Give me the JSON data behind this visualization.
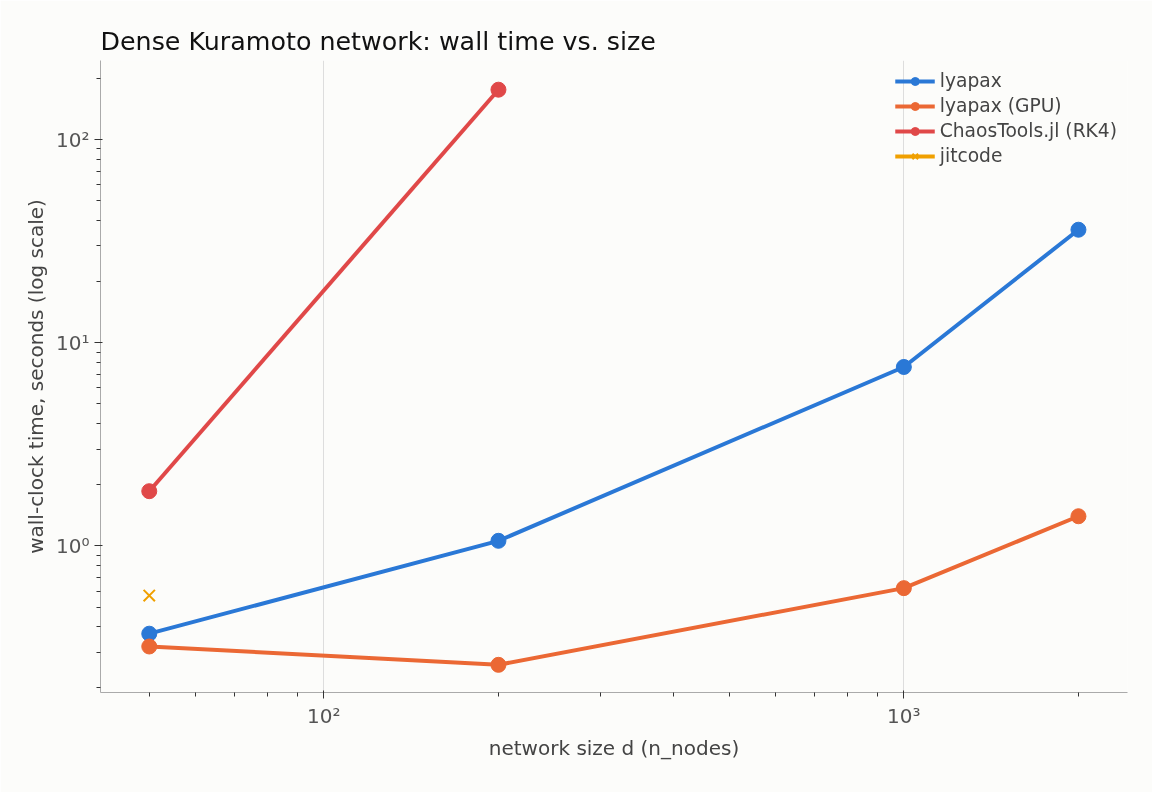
{
  "chart_data": {
    "type": "line",
    "title": "Dense Kuramoto network: wall time vs. size",
    "xlabel": "network size d (n_nodes)",
    "ylabel": "wall-clock time, seconds (log scale)",
    "log": "xy",
    "grid": "x",
    "legend": "top right",
    "marker": "circle",
    "xlim": [
      41.2,
      2430
    ],
    "ylim": [
      0.19,
      245
    ],
    "xticks": [
      {
        "value": 100,
        "label": "10²"
      },
      {
        "value": 1000,
        "label": "10³"
      }
    ],
    "yticks": [
      {
        "value": 1,
        "label": "10⁰"
      },
      {
        "value": 10,
        "label": "10¹"
      },
      {
        "value": 100,
        "label": "10²"
      }
    ],
    "series": [
      {
        "name": "lyapax",
        "color": "#2a78d6",
        "x": [
          50,
          200,
          1000,
          2000
        ],
        "values": [
          0.37,
          1.06,
          7.6,
          36
        ]
      },
      {
        "name": "lyapax (GPU)",
        "color": "#eb6834",
        "x": [
          50,
          200,
          1000,
          2000
        ],
        "values": [
          0.32,
          0.26,
          0.62,
          1.4
        ]
      },
      {
        "name": "ChaosTools.jl (RK4)",
        "color": "#e04848",
        "x": [
          50,
          200
        ],
        "values": [
          1.86,
          176
        ]
      },
      {
        "name": "jitcode",
        "color": "#f0a000",
        "x": [
          50
        ],
        "values": [
          0.57
        ],
        "marker": "cross"
      }
    ]
  }
}
